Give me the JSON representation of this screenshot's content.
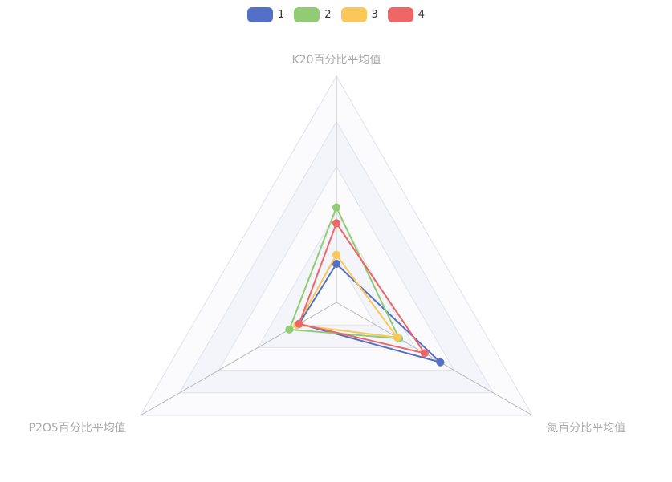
{
  "chart_data": {
    "type": "radar",
    "indicators": [
      "K20百分比平均值",
      "氮百分比平均值",
      "P2O5百分比平均值"
    ],
    "max": 1.0,
    "split_number": 5,
    "series": [
      {
        "name": "1",
        "color": "#5470c6",
        "values": [
          0.17,
          0.53,
          0.19
        ]
      },
      {
        "name": "2",
        "color": "#91cc75",
        "values": [
          0.42,
          0.32,
          0.24
        ]
      },
      {
        "name": "3",
        "color": "#fac858",
        "values": [
          0.21,
          0.31,
          0.2
        ]
      },
      {
        "name": "4",
        "color": "#ee6666",
        "values": [
          0.35,
          0.45,
          0.19
        ]
      }
    ],
    "legend_position": "top"
  }
}
